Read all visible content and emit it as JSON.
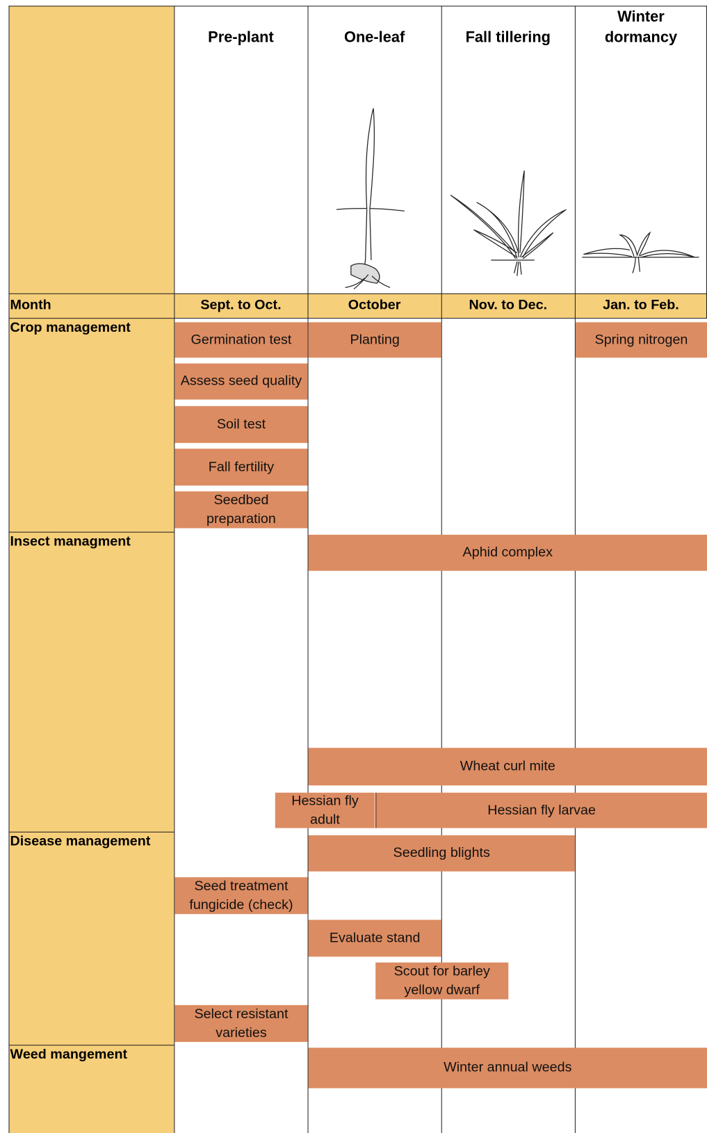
{
  "header": {
    "stages": [
      "Pre-plant",
      "One-leaf",
      "Fall tillering",
      "Winter dormancy"
    ]
  },
  "month_row": {
    "label": "Month",
    "months": [
      "Sept. to Oct.",
      "October",
      "Nov. to Dec.",
      "Jan. to Feb."
    ]
  },
  "sections": [
    {
      "title": "Crop management",
      "tasks": [
        "Germination test",
        "Planting",
        "Spring nitrogen",
        "Assess seed quality",
        "Soil test",
        "Fall fertility",
        "Seedbed preparation"
      ]
    },
    {
      "title": "Insect managment",
      "tasks": [
        "Aphid complex",
        "Wheat curl mite",
        "Hessian fly adult",
        "Hessian fly larvae"
      ]
    },
    {
      "title": "Disease management",
      "tasks": [
        "Seedling blights",
        "Seed treatment fungicide (check)",
        "Evaluate stand",
        "Scout for barley yellow dwarf",
        "Select resistant varieties"
      ]
    },
    {
      "title": "Weed mangement",
      "tasks": [
        "Winter annual weeds"
      ]
    }
  ]
}
